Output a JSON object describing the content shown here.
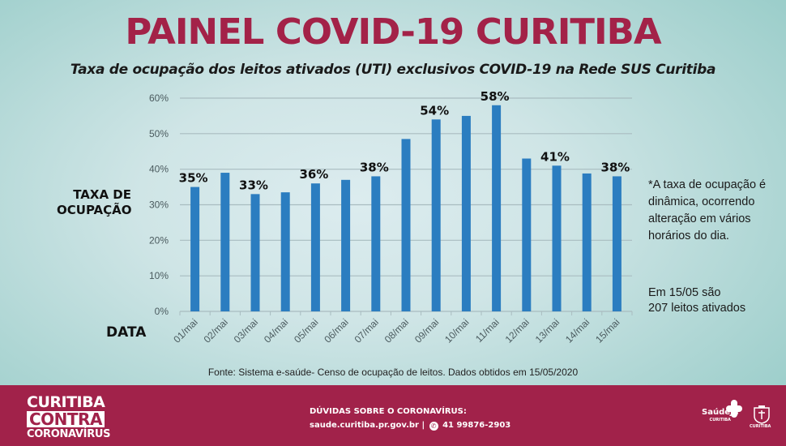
{
  "header": {
    "title": "PAINEL COVID-19 CURITIBA",
    "subtitle": "Taxa de ocupação dos leitos ativados (UTI) exclusivos COVID-19 na Rede SUS Curitiba"
  },
  "side_labels": {
    "y_line1": "TAXA DE",
    "y_line2": "OCUPAÇÃO",
    "x": "DATA"
  },
  "notes": {
    "dynamic_1": "*A taxa de ocupação é",
    "dynamic_2": "dinâmica, ocorrendo",
    "dynamic_3": "alteração em vários",
    "dynamic_4": "horários do dia.",
    "beds_1": "Em 15/05 são",
    "beds_2": "207 leitos ativados"
  },
  "source": "Fonte: Sistema e-saúde- Censo de ocupação de leitos. Dados obtidos em 15/05/2020",
  "footer": {
    "brand_line1": "CURITIBA",
    "brand_line2": "CONTRA",
    "brand_line3": "CORONAVÍRUS",
    "contact_title": "DÚVIDAS SOBRE O CORONAVÍRUS:",
    "contact_site": "saude.curitiba.pr.gov.br",
    "contact_separator": "|",
    "contact_phone": "41 99876-2903",
    "whatsapp_icon": "whatsapp-icon",
    "saude_logo": "SaúdeJá",
    "saude_logo_sub": "CURITIBA",
    "crest_label": "CURITIBA"
  },
  "colors": {
    "title": "#a32248",
    "bar": "#2b7dc0",
    "footer": "#a1224a",
    "grid": "#a9bcc0"
  },
  "chart_data": {
    "type": "bar",
    "title": "Taxa de ocupação dos leitos ativados (UTI) exclusivos COVID-19 na Rede SUS Curitiba",
    "xlabel": "DATA",
    "ylabel": "TAXA DE OCUPAÇÃO",
    "categories": [
      "01/mai",
      "02/mai",
      "03/mai",
      "04/mai",
      "05/mai",
      "06/mai",
      "07/mai",
      "08/mai",
      "09/mai",
      "10/mai",
      "11/mai",
      "12/mai",
      "13/mai",
      "14/mai",
      "15/mai"
    ],
    "values": [
      35,
      39,
      33,
      33.5,
      36,
      37,
      38,
      48.5,
      54,
      55,
      58,
      43,
      41,
      38.8,
      38
    ],
    "data_labels": [
      "35%",
      "",
      "33%",
      "",
      "36%",
      "",
      "38%",
      "",
      "54%",
      "",
      "58%",
      "",
      "41%",
      "",
      "38%"
    ],
    "yticks": [
      "0%",
      "10%",
      "20%",
      "30%",
      "40%",
      "50%",
      "60%"
    ],
    "ytick_values": [
      0,
      10,
      20,
      30,
      40,
      50,
      60
    ],
    "ylim": [
      0,
      60
    ],
    "grid": true,
    "legend": "none"
  }
}
